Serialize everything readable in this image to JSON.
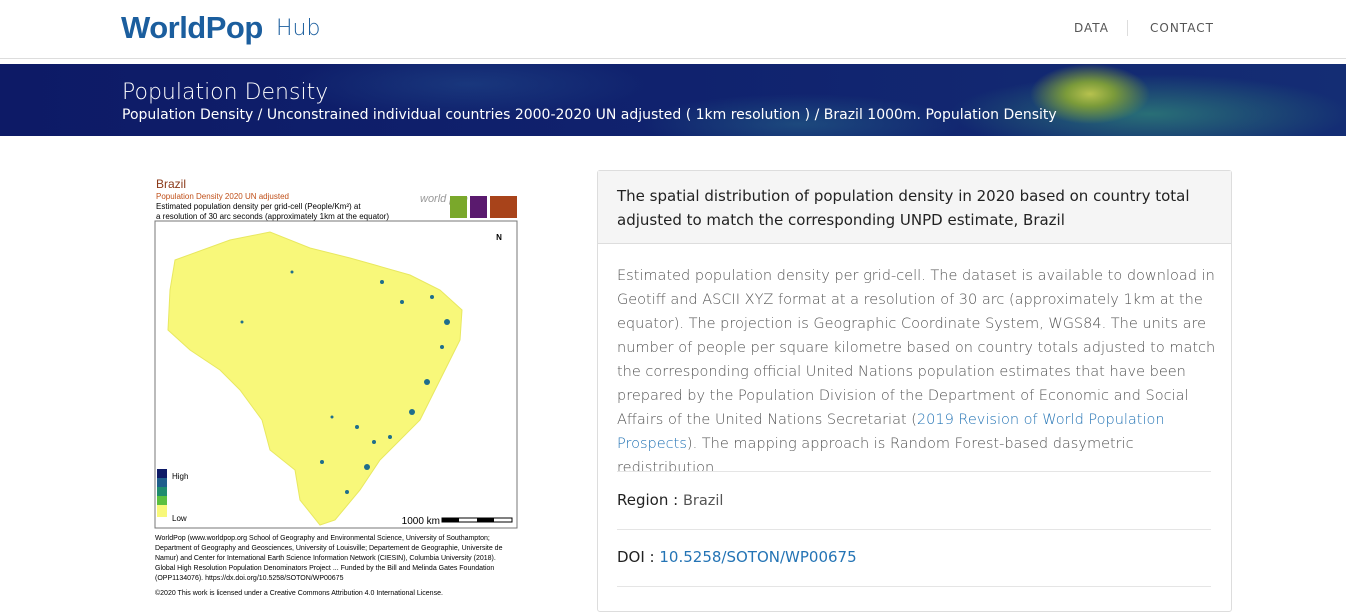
{
  "header": {
    "logo": "WorldPop",
    "hub": "Hub",
    "nav": [
      "DATA",
      "CONTACT"
    ]
  },
  "banner": {
    "title": "Population Density",
    "breadcrumb": "Population Density / Unconstrained individual countries 2000-2020 UN adjusted ( 1km resolution ) / Brazil 1000m. Population Density"
  },
  "map": {
    "title": "Brazil",
    "subtitle": "Population Density 2020 UN adjusted",
    "caption": [
      "Estimated population density per grid-cell (People/Km²) at",
      "a resolution of 30 arc seconds (approximately 1km at the equator)"
    ],
    "logo": "world pop",
    "north": "N",
    "legend": [
      "High",
      "Low"
    ],
    "scale": "1000 km",
    "credits": "WorldPop (www.worldpop.org School of Geography and Environmental Science, University of Southampton; Department of Geography and Geosciences, University of Louisville; Departement de Geographie, Universite de Namur) and Center for International Earth Science Information Network (CIESIN), Columbia University (2018). Global High Resolution Population Denominators Project ... Funded by the Bill and Melinda Gates Foundation (OPP1134076). https://dx.doi.org/10.5258/SOTON/WP00675",
    "license": "©2020 This work is licensed under a Creative Commons Attribution 4.0 International License."
  },
  "panel": {
    "heading": "The spatial distribution of population density in 2020 based on country total adjusted to match the corresponding UNPD estimate, Brazil",
    "description": {
      "before": "Estimated population density per grid-cell. The dataset is available to download in Geotiff and ASCII XYZ format at a resolution of 30 arc (approximately 1km at the equator). The projection is Geographic Coordinate System, WGS84. The units are number of people per square kilometre based on country totals adjusted to match the corresponding official United Nations population estimates that have been prepared by the Population Division of the Department of Economic and Social Affairs of the United Nations Secretariat (",
      "link": "2019 Revision of World Population Prospects",
      "after": "). The mapping approach is Random Forest-based dasymetric redistribution."
    },
    "region": {
      "label": "Region :",
      "value": "Brazil"
    },
    "doi": {
      "label": "DOI :",
      "value": "10.5258/SOTON/WP00675"
    }
  }
}
